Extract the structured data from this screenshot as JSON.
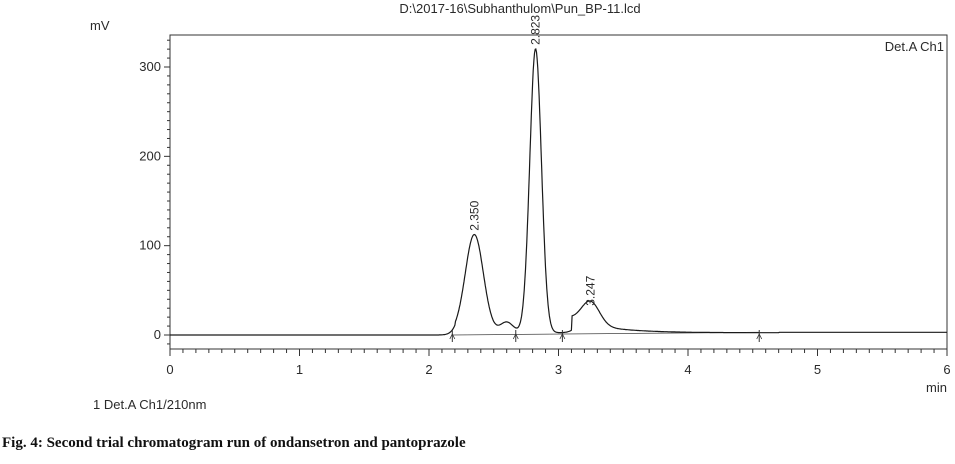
{
  "chart_data": {
    "type": "line",
    "title": "D:\\2017-16\\Subhanthulom\\Pun_BP-11.lcd",
    "ylabel": "mV",
    "xlabel": "min",
    "channel_label": "Det.A Ch1",
    "xlim": [
      0,
      6
    ],
    "ylim": [
      -15,
      335
    ],
    "x_ticks": [
      "0",
      "1",
      "2",
      "3",
      "4",
      "5",
      "6"
    ],
    "y_ticks": [
      "0",
      "100",
      "200",
      "300"
    ],
    "peaks": [
      {
        "label": "2.350",
        "time": 2.35,
        "height": 110,
        "width": 0.07
      },
      {
        "label": "2.823",
        "time": 2.823,
        "height": 318,
        "width": 0.045
      },
      {
        "label": "3.247",
        "time": 3.247,
        "height": 26,
        "width": 0.07
      }
    ],
    "integration_markers": [
      2.18,
      2.67,
      3.03,
      4.55
    ],
    "legend": "1  Det.A Ch1/210nm"
  },
  "caption": "Fig. 4: Second trial chromatogram run of ondansetron and pantoprazole"
}
